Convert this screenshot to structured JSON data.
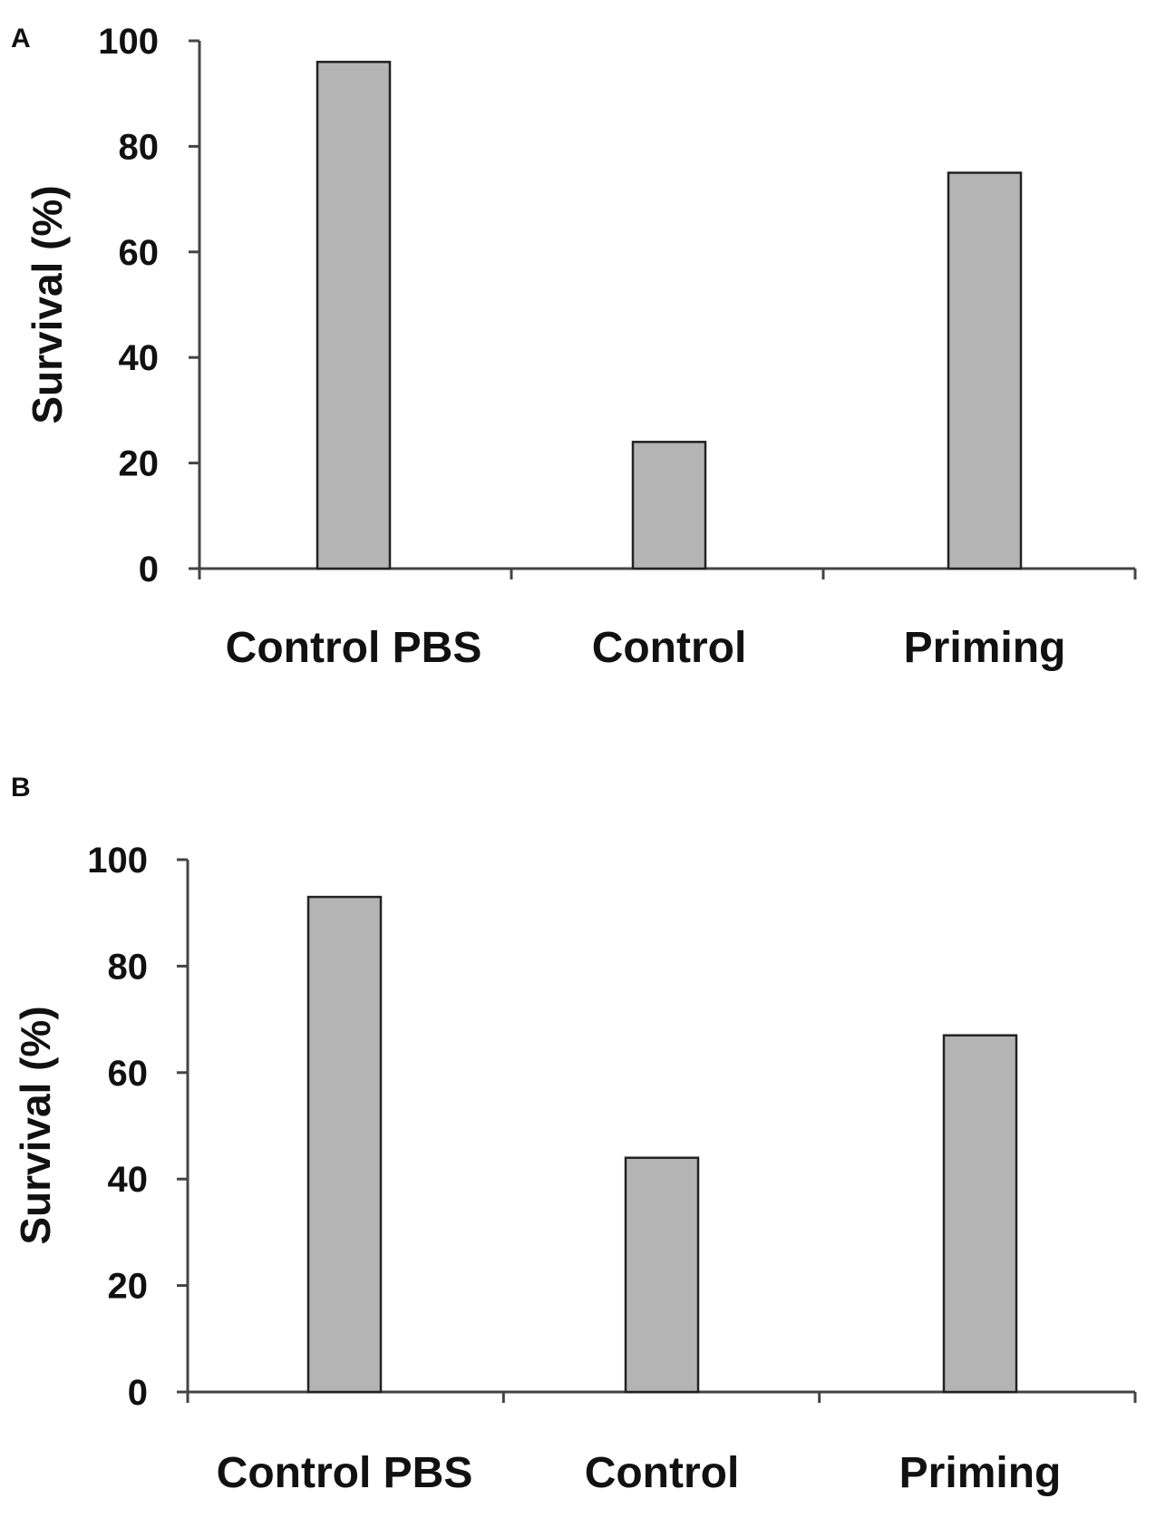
{
  "chart_data": [
    {
      "type": "bar",
      "panel_label": "A",
      "categories": [
        "Control PBS",
        "Control",
        "Priming"
      ],
      "values": [
        96,
        24,
        75
      ],
      "title": "",
      "xlabel": "",
      "ylabel": "Survival (%)",
      "ylim": [
        0,
        100
      ],
      "yticks": [
        "0",
        "20",
        "40",
        "60",
        "80",
        "100"
      ],
      "grid": false,
      "legend": "none"
    },
    {
      "type": "bar",
      "panel_label": "B",
      "categories": [
        "Control PBS",
        "Control",
        "Priming"
      ],
      "values": [
        93,
        44,
        67
      ],
      "title": "",
      "xlabel": "",
      "ylabel": "Survival (%)",
      "ylim": [
        0,
        100
      ],
      "yticks": [
        "0",
        "20",
        "40",
        "60",
        "80",
        "100"
      ],
      "grid": false,
      "legend": "none"
    }
  ],
  "colors": {
    "bar_fill": "#b4b4b4",
    "bar_stroke": "#222222",
    "axis": "#444444",
    "text": "#111111"
  }
}
